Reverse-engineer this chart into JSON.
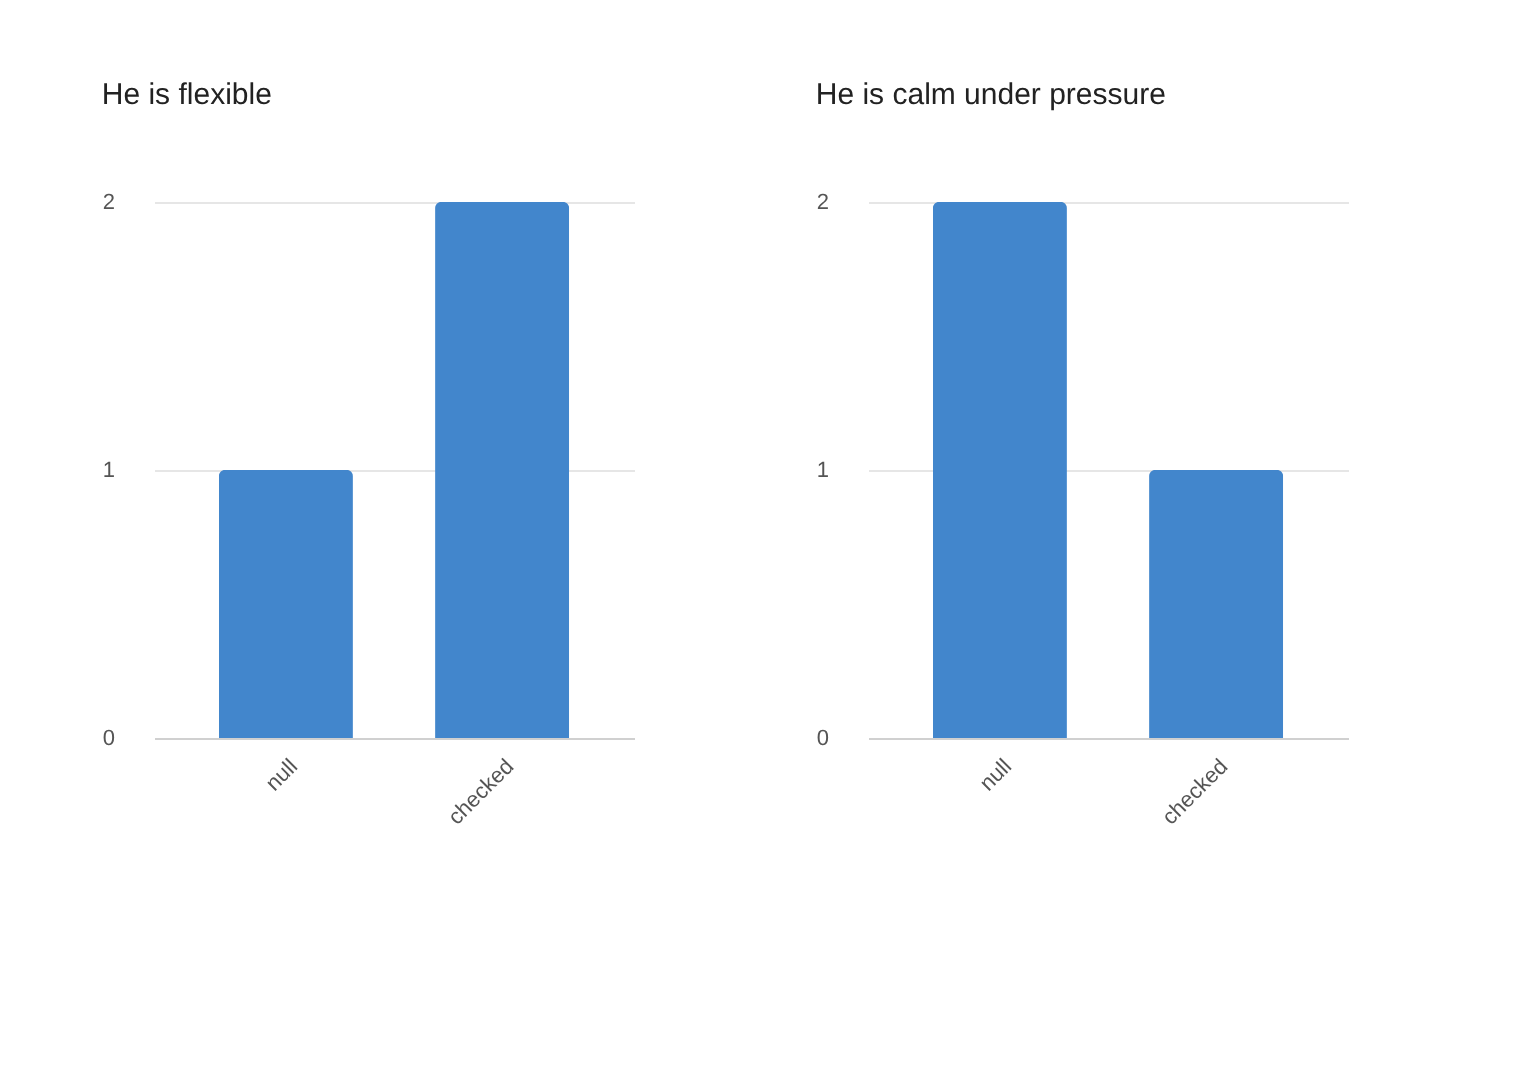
{
  "chart_data": [
    {
      "type": "bar",
      "title": "He is flexible",
      "categories": [
        "null",
        "checked"
      ],
      "values": [
        1,
        2
      ],
      "color": "#4286cc",
      "ylim": [
        0,
        2
      ],
      "yticks": [
        0,
        1,
        2
      ],
      "grid": "y"
    },
    {
      "type": "bar",
      "title": "He is calm under pressure",
      "categories": [
        "null",
        "checked"
      ],
      "values": [
        2,
        1
      ],
      "color": "#4286cc",
      "ylim": [
        0,
        2
      ],
      "yticks": [
        0,
        1,
        2
      ],
      "grid": "y"
    }
  ]
}
